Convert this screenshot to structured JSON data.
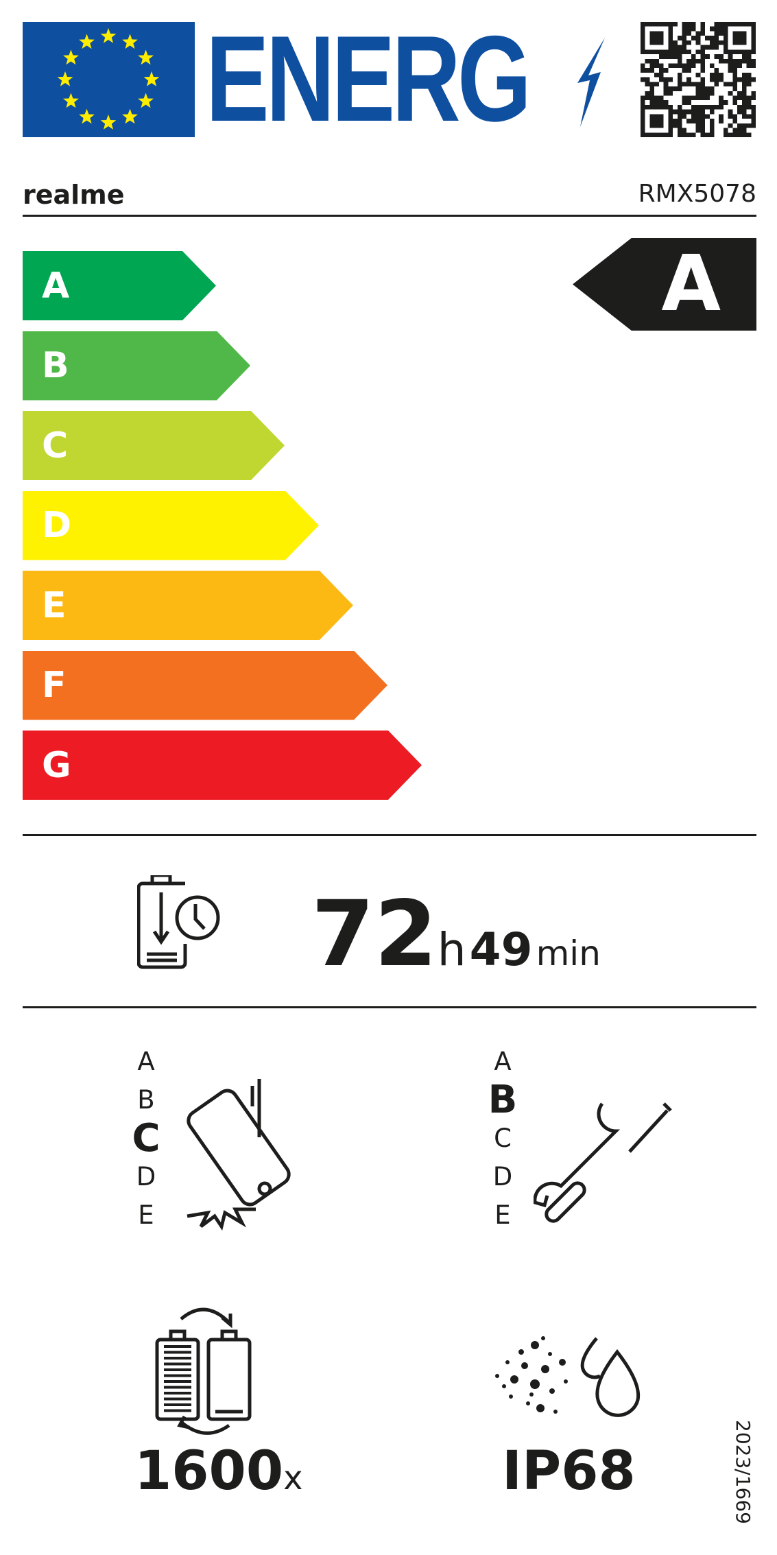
{
  "header": {
    "logo_text": "ENERG",
    "brand": "realme",
    "model": "RMX5078"
  },
  "colors": {
    "eu_blue": "#0e4fa0",
    "star_yellow": "#ffed00",
    "rating_bg": "#1d1d1b"
  },
  "energy_scale": [
    {
      "label": "A",
      "color": "#00a651"
    },
    {
      "label": "B",
      "color": "#50b848"
    },
    {
      "label": "C",
      "color": "#bfd730"
    },
    {
      "label": "D",
      "color": "#fff200"
    },
    {
      "label": "E",
      "color": "#fdb913"
    },
    {
      "label": "F",
      "color": "#f37021"
    },
    {
      "label": "G",
      "color": "#ed1c24"
    }
  ],
  "energy_class": "A",
  "battery_endurance": {
    "hours": "72",
    "hours_unit": "h",
    "minutes": "49",
    "minutes_unit": "min",
    "icon": "battery-clock-icon"
  },
  "drop_resistance": {
    "scale": [
      "A",
      "B",
      "C",
      "D",
      "E"
    ],
    "selected": "C",
    "icon": "falling-phone-icon"
  },
  "repairability": {
    "scale": [
      "A",
      "B",
      "C",
      "D",
      "E"
    ],
    "selected": "B",
    "icon": "wrench-screwdriver-icon"
  },
  "battery_cycles": {
    "value": "1600",
    "unit": "x",
    "icon": "battery-cycles-icon"
  },
  "ingress_protection": {
    "value": "IP68",
    "icon": "dust-water-icon"
  },
  "regulation": "2023/1669"
}
